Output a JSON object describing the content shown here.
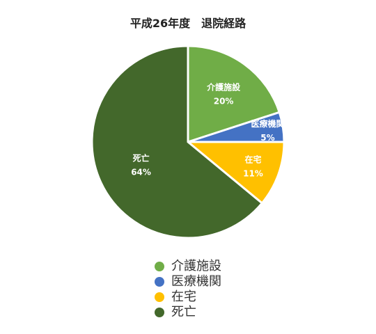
{
  "chart_data": {
    "type": "pie",
    "title": "平成26年度　退院経路",
    "categories": [
      "介護施設",
      "医療機関",
      "在宅",
      "死亡"
    ],
    "values": [
      20,
      5,
      11,
      64
    ],
    "labels": [
      "20%",
      "5%",
      "11%",
      "64%"
    ],
    "colors": [
      "#70ad47",
      "#4472c4",
      "#ffc000",
      "#43682b"
    ],
    "legend_position": "bottom"
  }
}
